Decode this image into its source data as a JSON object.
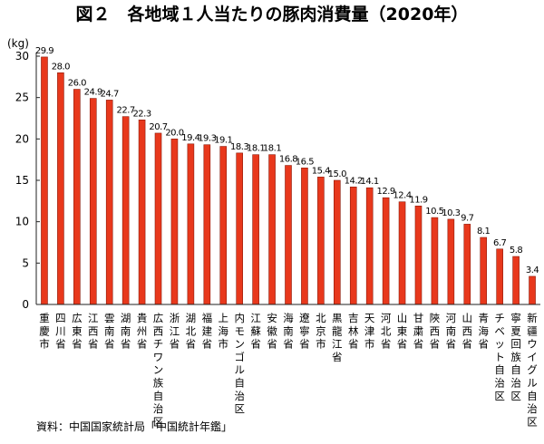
{
  "title": "図２　各地域１人当たりの豚肉消費量（2020年）",
  "source": "資料：中国国家統計局「中国統計年鑑」",
  "colors": {
    "bar": "#e8381c",
    "bar_edge": "#8c1a0a",
    "axis": "#222222"
  },
  "chart_data": {
    "type": "bar",
    "title": "図２　各地域１人当たりの豚肉消費量（2020年）",
    "ylabel": "(kg)",
    "xlabel": "",
    "ylim": [
      0,
      30
    ],
    "yticks": [
      0,
      5,
      10,
      15,
      20,
      25,
      30
    ],
    "grid": false,
    "categories": [
      "重慶市",
      "四川省",
      "広東省",
      "江西省",
      "雲南省",
      "湖南省",
      "貴州省",
      "広西チワン族自治区",
      "浙江省",
      "湖北省",
      "福建省",
      "上海市",
      "内モンゴル自治区",
      "江蘇省",
      "安徽省",
      "海南省",
      "遼寧省",
      "北京市",
      "黒龍江省",
      "吉林省",
      "天津市",
      "河北省",
      "山東省",
      "甘粛省",
      "陝西省",
      "河南省",
      "山西省",
      "青海省",
      "チベット自治区",
      "寧夏回族自治区",
      "新疆ウイグル自治区"
    ],
    "values": [
      29.9,
      28.0,
      26.0,
      24.9,
      24.7,
      22.7,
      22.3,
      20.7,
      20.0,
      19.4,
      19.3,
      19.1,
      18.3,
      18.1,
      18.1,
      16.8,
      16.5,
      15.4,
      15.0,
      14.2,
      14.1,
      12.9,
      12.4,
      11.9,
      10.5,
      10.3,
      9.7,
      8.1,
      6.7,
      5.8,
      3.4
    ],
    "value_labels": [
      "29.9",
      "28.0",
      "26.0",
      "24.9",
      "24.7",
      "22.7",
      "22.3",
      "20.7",
      "20.0",
      "19.4",
      "19.3",
      "19.1",
      "18.3",
      "18.1",
      "18.1",
      "16.8",
      "16.5",
      "15.4",
      "15.0",
      "14.2",
      "14.1",
      "12.9",
      "12.4",
      "11.9",
      "10.5",
      "10.3",
      "9.7",
      "8.1",
      "6.7",
      "5.8",
      "3.4"
    ]
  }
}
